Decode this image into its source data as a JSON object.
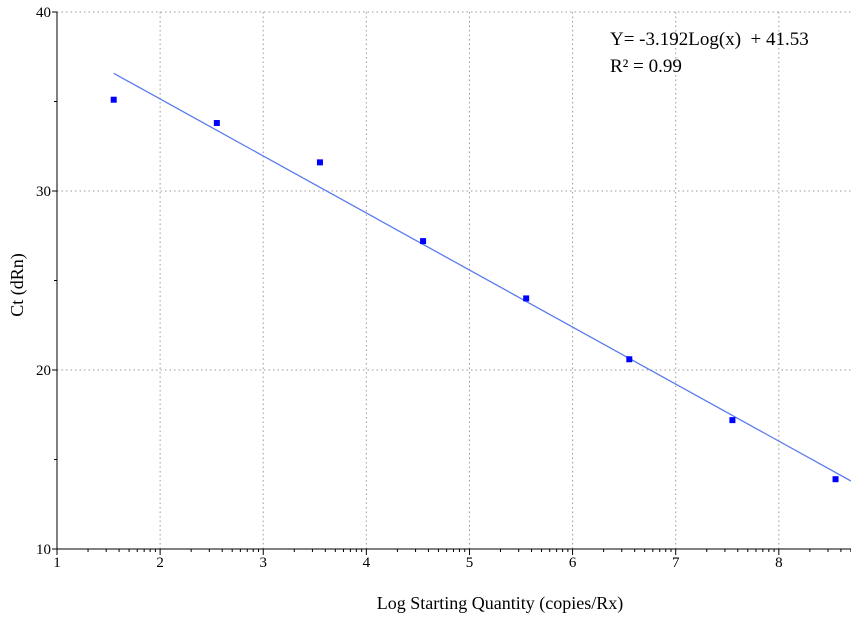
{
  "chart_data": {
    "type": "scatter",
    "title": "",
    "xlabel": "Log Starting Quantity (copies/Rx)",
    "ylabel": "Ct (dRn)",
    "xlim": [
      1,
      8.7
    ],
    "ylim": [
      10,
      40
    ],
    "xticks": [
      "1",
      "2",
      "3",
      "4",
      "5",
      "6",
      "7",
      "8"
    ],
    "yticks": [
      "10",
      "20",
      "30",
      "40"
    ],
    "grid": true,
    "series": [
      {
        "color": "#0000ff",
        "points": [
          {
            "x": 1.55,
            "y": 35.1
          },
          {
            "x": 2.55,
            "y": 33.8
          },
          {
            "x": 3.55,
            "y": 31.6
          },
          {
            "x": 4.55,
            "y": 27.2
          },
          {
            "x": 5.55,
            "y": 24.0
          },
          {
            "x": 6.55,
            "y": 20.6
          },
          {
            "x": 7.55,
            "y": 17.2
          },
          {
            "x": 8.55,
            "y": 13.9
          }
        ]
      }
    ],
    "fit_line": {
      "color": "#5b7cf0",
      "slope": -3.192,
      "intercept": 41.53,
      "x_range": [
        1.55,
        8.7
      ]
    },
    "annotation": {
      "equation": "Y= -3.192Log(x)  + 41.53",
      "r_squared": "R² = 0.99"
    }
  }
}
